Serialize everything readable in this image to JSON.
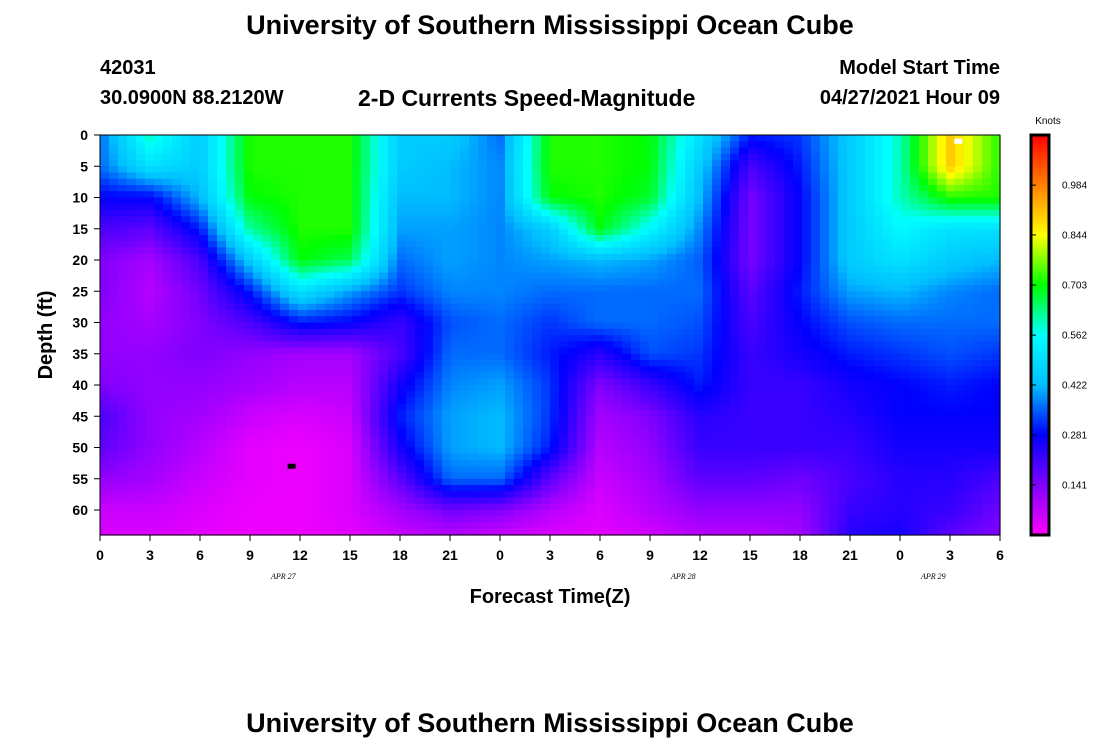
{
  "header": {
    "title": "University of Southern Mississippi Ocean Cube",
    "station_id": "42031",
    "station_coords": "30.0900N  88.2120W",
    "plot_title": "2-D Currents Speed-Magnitude",
    "model_label": "Model Start Time",
    "model_time": "04/27/2021 Hour 09"
  },
  "footer": {
    "title": "University of Southern Mississippi Ocean Cube"
  },
  "chart_data": {
    "type": "heatmap",
    "title": "2-D Currents Speed-Magnitude",
    "xlabel": "Forecast Time(Z)",
    "ylabel": "Depth (ft)",
    "x_tick_labels": [
      "0",
      "3",
      "6",
      "9",
      "12",
      "15",
      "18",
      "21",
      "0",
      "3",
      "6",
      "9",
      "12",
      "15",
      "18",
      "21",
      "0",
      "3",
      "6"
    ],
    "date_labels": [
      {
        "label": "APR 27",
        "hour": 11
      },
      {
        "label": "APR 28",
        "hour": 35
      },
      {
        "label": "APR 29",
        "hour": 50
      }
    ],
    "xlim_hours": [
      0,
      54
    ],
    "ylim": [
      0,
      64
    ],
    "y_ticks": [
      0,
      5,
      10,
      15,
      20,
      25,
      30,
      35,
      40,
      45,
      50,
      55,
      60
    ],
    "y_inverted": true,
    "colorbar": {
      "title": "Knots",
      "ticks": [
        "0.984",
        "0.844",
        "0.703",
        "0.562",
        "0.422",
        "0.281",
        "0.141"
      ],
      "range": [
        0,
        1.125
      ],
      "colors": [
        "#ff00ff",
        "#8000ff",
        "#0000ff",
        "#00bfff",
        "#00ffff",
        "#00ff00",
        "#ffff00",
        "#ff8000",
        "#ff0000"
      ]
    },
    "depths": [
      0,
      5,
      10,
      15,
      20,
      25,
      30,
      35,
      40,
      45,
      50,
      55,
      60,
      64
    ],
    "hours": [
      0,
      3,
      6,
      9,
      12,
      15,
      18,
      21,
      24,
      27,
      30,
      33,
      36,
      39,
      42,
      45,
      48,
      51,
      54
    ],
    "values": [
      [
        0.36,
        0.6,
        0.45,
        0.72,
        0.72,
        0.72,
        0.45,
        0.45,
        0.36,
        0.72,
        0.72,
        0.7,
        0.5,
        0.3,
        0.32,
        0.45,
        0.6,
        0.9,
        0.72
      ],
      [
        0.36,
        0.5,
        0.45,
        0.72,
        0.72,
        0.72,
        0.45,
        0.42,
        0.38,
        0.72,
        0.72,
        0.7,
        0.45,
        0.2,
        0.3,
        0.45,
        0.6,
        0.9,
        0.72
      ],
      [
        0.28,
        0.28,
        0.42,
        0.7,
        0.72,
        0.72,
        0.42,
        0.42,
        0.38,
        0.7,
        0.72,
        0.68,
        0.42,
        0.15,
        0.28,
        0.45,
        0.6,
        0.72,
        0.72
      ],
      [
        0.2,
        0.18,
        0.3,
        0.62,
        0.72,
        0.72,
        0.4,
        0.4,
        0.38,
        0.45,
        0.7,
        0.55,
        0.38,
        0.15,
        0.28,
        0.45,
        0.55,
        0.5,
        0.5
      ],
      [
        0.14,
        0.1,
        0.2,
        0.45,
        0.7,
        0.66,
        0.36,
        0.4,
        0.38,
        0.4,
        0.42,
        0.4,
        0.35,
        0.15,
        0.28,
        0.45,
        0.5,
        0.45,
        0.42
      ],
      [
        0.14,
        0.08,
        0.16,
        0.3,
        0.5,
        0.4,
        0.32,
        0.38,
        0.38,
        0.36,
        0.36,
        0.36,
        0.36,
        0.18,
        0.3,
        0.4,
        0.42,
        0.38,
        0.36
      ],
      [
        0.12,
        0.1,
        0.14,
        0.2,
        0.3,
        0.28,
        0.22,
        0.34,
        0.36,
        0.32,
        0.36,
        0.36,
        0.34,
        0.2,
        0.28,
        0.34,
        0.36,
        0.36,
        0.36
      ],
      [
        0.12,
        0.12,
        0.14,
        0.12,
        0.1,
        0.1,
        0.2,
        0.36,
        0.36,
        0.3,
        0.24,
        0.34,
        0.32,
        0.22,
        0.26,
        0.3,
        0.32,
        0.34,
        0.32
      ],
      [
        0.14,
        0.12,
        0.12,
        0.1,
        0.08,
        0.08,
        0.26,
        0.38,
        0.4,
        0.32,
        0.14,
        0.22,
        0.3,
        0.22,
        0.22,
        0.26,
        0.28,
        0.3,
        0.28
      ],
      [
        0.2,
        0.12,
        0.1,
        0.06,
        0.04,
        0.06,
        0.3,
        0.4,
        0.42,
        0.32,
        0.1,
        0.14,
        0.24,
        0.22,
        0.22,
        0.24,
        0.28,
        0.28,
        0.28
      ],
      [
        0.18,
        0.12,
        0.08,
        0.03,
        0.02,
        0.04,
        0.26,
        0.4,
        0.42,
        0.3,
        0.08,
        0.12,
        0.22,
        0.22,
        0.22,
        0.22,
        0.26,
        0.26,
        0.26
      ],
      [
        0.12,
        0.1,
        0.06,
        0.03,
        0.02,
        0.04,
        0.18,
        0.36,
        0.36,
        0.18,
        0.06,
        0.1,
        0.18,
        0.18,
        0.16,
        0.2,
        0.24,
        0.24,
        0.2
      ],
      [
        0.06,
        0.06,
        0.04,
        0.02,
        0.02,
        0.04,
        0.1,
        0.16,
        0.14,
        0.08,
        0.04,
        0.08,
        0.12,
        0.12,
        0.12,
        0.22,
        0.24,
        0.22,
        0.16
      ],
      [
        0.04,
        0.04,
        0.03,
        0.02,
        0.02,
        0.03,
        0.06,
        0.08,
        0.06,
        0.04,
        0.03,
        0.05,
        0.08,
        0.08,
        0.1,
        0.24,
        0.26,
        0.18,
        0.14
      ]
    ],
    "markers": [
      {
        "hour": 11.5,
        "depth": 53,
        "color": "#000000"
      },
      {
        "hour": 51.5,
        "depth": 1,
        "color": "#ffffff"
      }
    ]
  }
}
